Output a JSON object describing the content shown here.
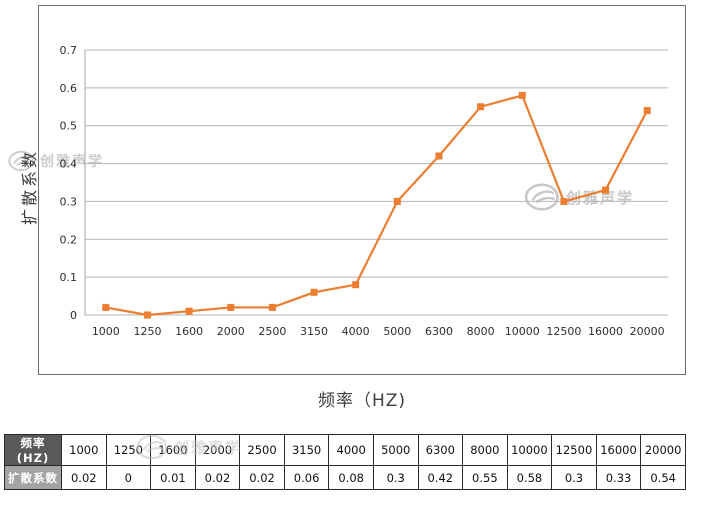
{
  "watermark": {
    "text": "创雅声学"
  },
  "chart_data": {
    "type": "line",
    "title": "",
    "xlabel": "频率（HZ)",
    "ylabel": "扩散系数",
    "categories": [
      "1000",
      "1250",
      "1600",
      "2000",
      "2500",
      "3150",
      "4000",
      "5000",
      "6300",
      "8000",
      "10000",
      "12500",
      "16000",
      "20000"
    ],
    "values": [
      0.02,
      0,
      0.01,
      0.02,
      0.02,
      0.06,
      0.08,
      0.3,
      0.42,
      0.55,
      0.58,
      0.3,
      0.33,
      0.54
    ],
    "ylim": [
      0,
      0.7
    ],
    "yticks": [
      "0.7",
      "0.6",
      "0.5",
      "0.4",
      "0.3",
      "0.2",
      "0.1",
      "0"
    ],
    "ytick_values": [
      0.7,
      0.6,
      0.5,
      0.4,
      0.3,
      0.2,
      0.1,
      0
    ],
    "grid": true,
    "legend": false,
    "series_color": "#ED7D31",
    "marker": "square",
    "grid_color": "#b4b4b4",
    "tick_label_color": "#2e2e2e"
  },
  "table": {
    "row1_header": "频率(HZ)",
    "row2_header": "扩散系数",
    "frequencies": [
      "1000",
      "1250",
      "1600",
      "2000",
      "2500",
      "3150",
      "4000",
      "5000",
      "6300",
      "8000",
      "10000",
      "12500",
      "16000",
      "20000"
    ],
    "coefficients": [
      "0.02",
      "0",
      "0.01",
      "0.02",
      "0.02",
      "0.06",
      "0.08",
      "0.3",
      "0.42",
      "0.55",
      "0.58",
      "0.3",
      "0.33",
      "0.54"
    ]
  }
}
